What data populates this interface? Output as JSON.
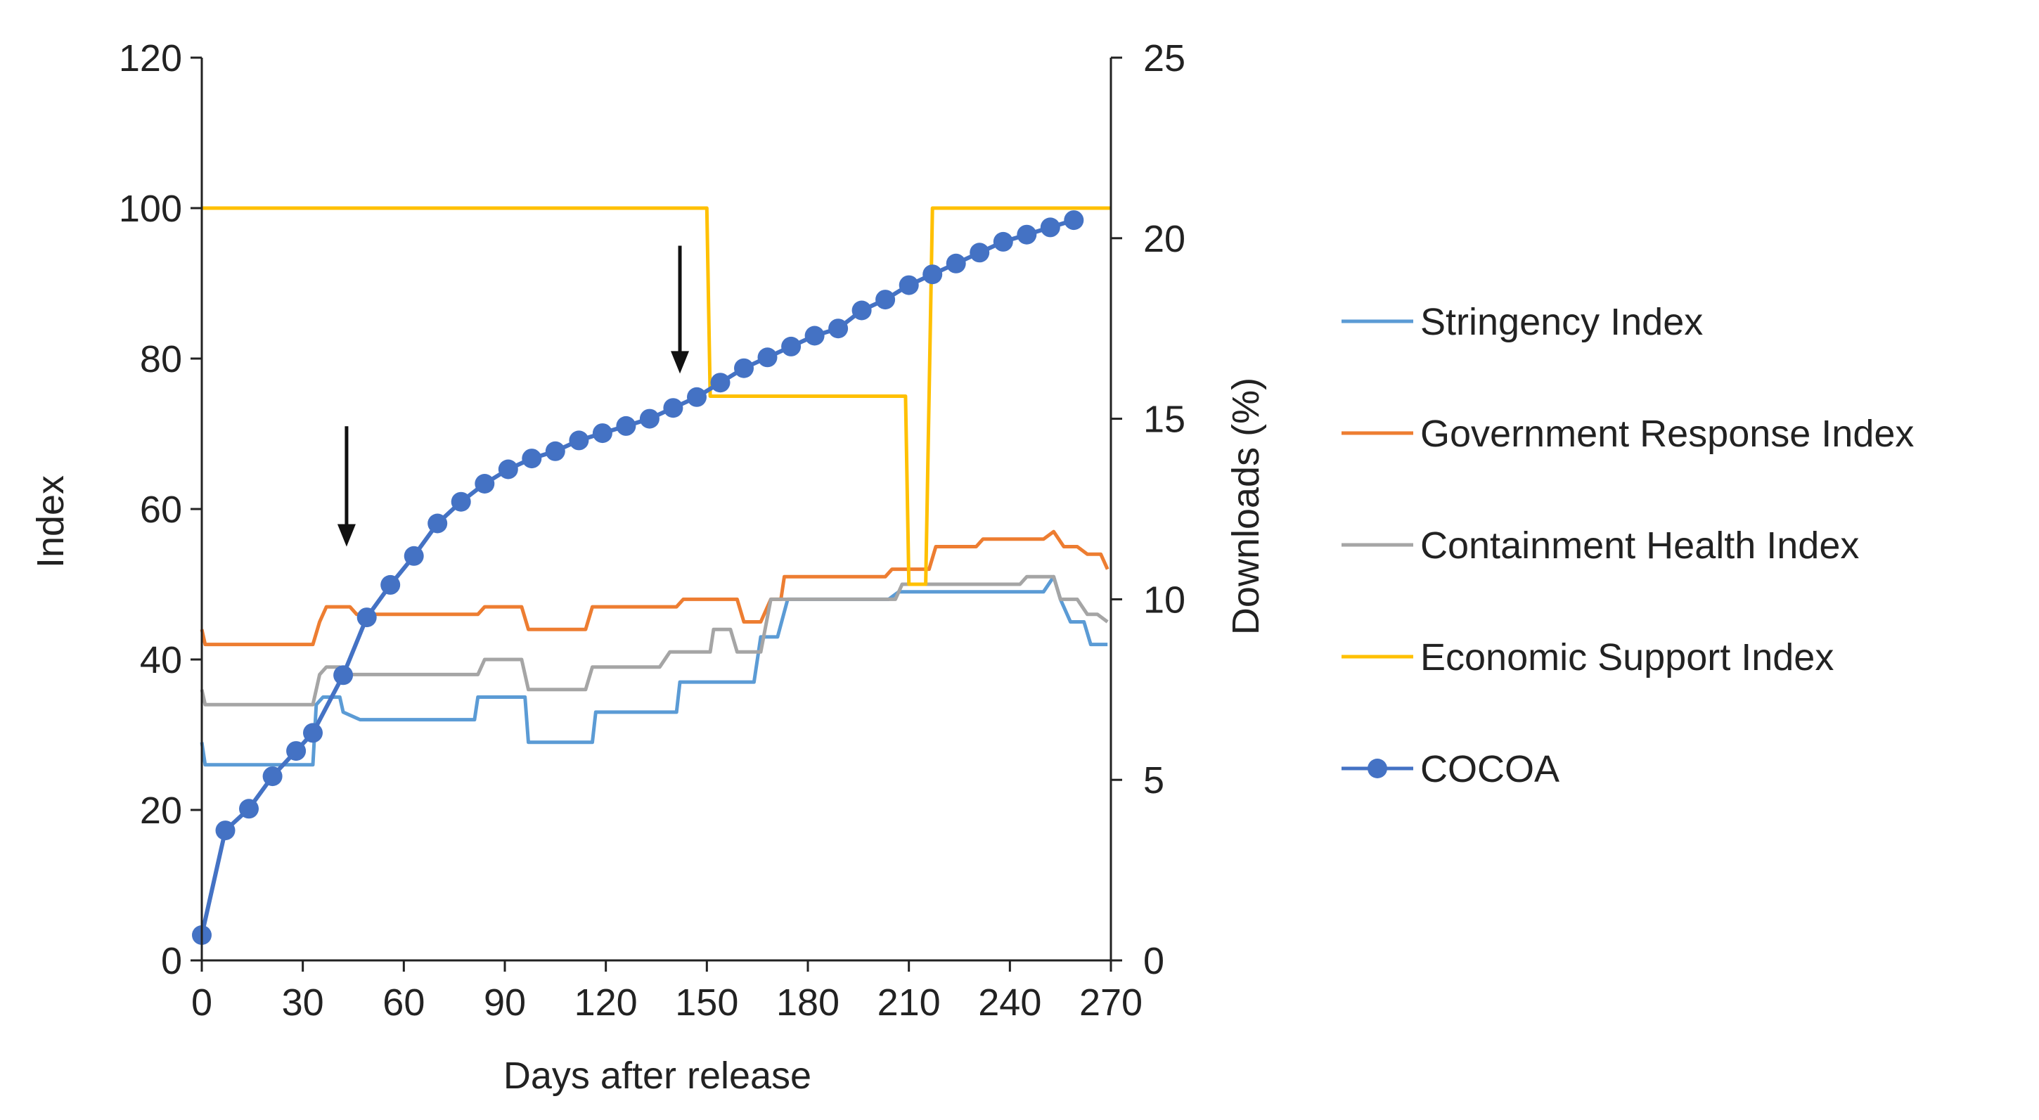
{
  "chart_data": {
    "type": "line",
    "title": "",
    "xlabel": "Days after release",
    "ylabel": "Index",
    "y2label": "Downloads (%)",
    "xlim": [
      0,
      270
    ],
    "ylim": [
      0,
      120
    ],
    "y2lim": [
      0,
      25
    ],
    "x_ticks": [
      0,
      30,
      60,
      90,
      120,
      150,
      180,
      210,
      240,
      270
    ],
    "y_ticks": [
      0,
      20,
      40,
      60,
      80,
      100,
      120
    ],
    "y2_ticks": [
      0,
      5,
      10,
      15,
      20,
      25
    ],
    "legend_position": "right",
    "series": [
      {
        "name": "Stringency Index",
        "color": "#5b9bd5",
        "axis": "left",
        "marker": "none",
        "points": [
          [
            0,
            29
          ],
          [
            1,
            26
          ],
          [
            33,
            26
          ],
          [
            34,
            34
          ],
          [
            36,
            35
          ],
          [
            41,
            35
          ],
          [
            42,
            33
          ],
          [
            47,
            32
          ],
          [
            72,
            32
          ],
          [
            81,
            32
          ],
          [
            82,
            35
          ],
          [
            96,
            35
          ],
          [
            97,
            29
          ],
          [
            116,
            29
          ],
          [
            117,
            33
          ],
          [
            141,
            33
          ],
          [
            142,
            37
          ],
          [
            164,
            37
          ],
          [
            166,
            43
          ],
          [
            171,
            43
          ],
          [
            174,
            48
          ],
          [
            204,
            48
          ],
          [
            207,
            49
          ],
          [
            250,
            49
          ],
          [
            253,
            51
          ],
          [
            255,
            48
          ],
          [
            258,
            45
          ],
          [
            262,
            45
          ],
          [
            264,
            42
          ],
          [
            269,
            42
          ]
        ]
      },
      {
        "name": "Government Response Index",
        "color": "#ed7d31",
        "axis": "left",
        "marker": "none",
        "points": [
          [
            0,
            44
          ],
          [
            1,
            42
          ],
          [
            33,
            42
          ],
          [
            35,
            45
          ],
          [
            37,
            47
          ],
          [
            44,
            47
          ],
          [
            46,
            46
          ],
          [
            82,
            46
          ],
          [
            84,
            47
          ],
          [
            95,
            47
          ],
          [
            97,
            44
          ],
          [
            114,
            44
          ],
          [
            116,
            47
          ],
          [
            141,
            47
          ],
          [
            143,
            48
          ],
          [
            159,
            48
          ],
          [
            161,
            45
          ],
          [
            166,
            45
          ],
          [
            169,
            48
          ],
          [
            172,
            48
          ],
          [
            173,
            51
          ],
          [
            203,
            51
          ],
          [
            205,
            52
          ],
          [
            216,
            52
          ],
          [
            218,
            55
          ],
          [
            230,
            55
          ],
          [
            232,
            56
          ],
          [
            250,
            56
          ],
          [
            253,
            57
          ],
          [
            256,
            55
          ],
          [
            260,
            55
          ],
          [
            263,
            54
          ],
          [
            267,
            54
          ],
          [
            269,
            52
          ]
        ]
      },
      {
        "name": "Containment Health Index",
        "color": "#a5a5a5",
        "axis": "left",
        "marker": "none",
        "points": [
          [
            0,
            36
          ],
          [
            1,
            34
          ],
          [
            33,
            34
          ],
          [
            35,
            38
          ],
          [
            37,
            39
          ],
          [
            41,
            39
          ],
          [
            43,
            38
          ],
          [
            82,
            38
          ],
          [
            84,
            40
          ],
          [
            95,
            40
          ],
          [
            97,
            36
          ],
          [
            114,
            36
          ],
          [
            116,
            39
          ],
          [
            136,
            39
          ],
          [
            139,
            41
          ],
          [
            151,
            41
          ],
          [
            152,
            44
          ],
          [
            157,
            44
          ],
          [
            159,
            41
          ],
          [
            166,
            41
          ],
          [
            169,
            48
          ],
          [
            206,
            48
          ],
          [
            208,
            50
          ],
          [
            243,
            50
          ],
          [
            245,
            51
          ],
          [
            253,
            51
          ],
          [
            255,
            48
          ],
          [
            260,
            48
          ],
          [
            263,
            46
          ],
          [
            266,
            46
          ],
          [
            269,
            45
          ]
        ]
      },
      {
        "name": "Economic Support Index",
        "color": "#ffc000",
        "axis": "left",
        "marker": "none",
        "points": [
          [
            0,
            100
          ],
          [
            150,
            100
          ],
          [
            151,
            75
          ],
          [
            209,
            75
          ],
          [
            210,
            50
          ],
          [
            215,
            50
          ],
          [
            217,
            100
          ],
          [
            270,
            100
          ]
        ]
      },
      {
        "name": "COCOA",
        "color": "#4472c4",
        "axis": "right",
        "marker": "circle",
        "points": [
          [
            0,
            0.7
          ],
          [
            7,
            3.6
          ],
          [
            14,
            4.2
          ],
          [
            21,
            5.1
          ],
          [
            28,
            5.8
          ],
          [
            33,
            6.3
          ],
          [
            42,
            7.9
          ],
          [
            49,
            9.5
          ],
          [
            56,
            10.4
          ],
          [
            63,
            11.2
          ],
          [
            70,
            12.1
          ],
          [
            77,
            12.7
          ],
          [
            84,
            13.2
          ],
          [
            91,
            13.6
          ],
          [
            98,
            13.9
          ],
          [
            105,
            14.1
          ],
          [
            112,
            14.4
          ],
          [
            119,
            14.6
          ],
          [
            126,
            14.8
          ],
          [
            133,
            15.0
          ],
          [
            140,
            15.3
          ],
          [
            147,
            15.6
          ],
          [
            154,
            16.0
          ],
          [
            161,
            16.4
          ],
          [
            168,
            16.7
          ],
          [
            175,
            17.0
          ],
          [
            182,
            17.3
          ],
          [
            189,
            17.5
          ],
          [
            196,
            18.0
          ],
          [
            203,
            18.3
          ],
          [
            210,
            18.7
          ],
          [
            217,
            19.0
          ],
          [
            224,
            19.3
          ],
          [
            231,
            19.6
          ],
          [
            238,
            19.9
          ],
          [
            245,
            20.1
          ],
          [
            252,
            20.3
          ],
          [
            259,
            20.5
          ]
        ]
      }
    ],
    "annotations": [
      {
        "type": "arrow-down",
        "x": 43,
        "y_top": 71,
        "y_bottom": 55
      },
      {
        "type": "arrow-down",
        "x": 142,
        "y_top": 95,
        "y_bottom": 78
      }
    ]
  }
}
